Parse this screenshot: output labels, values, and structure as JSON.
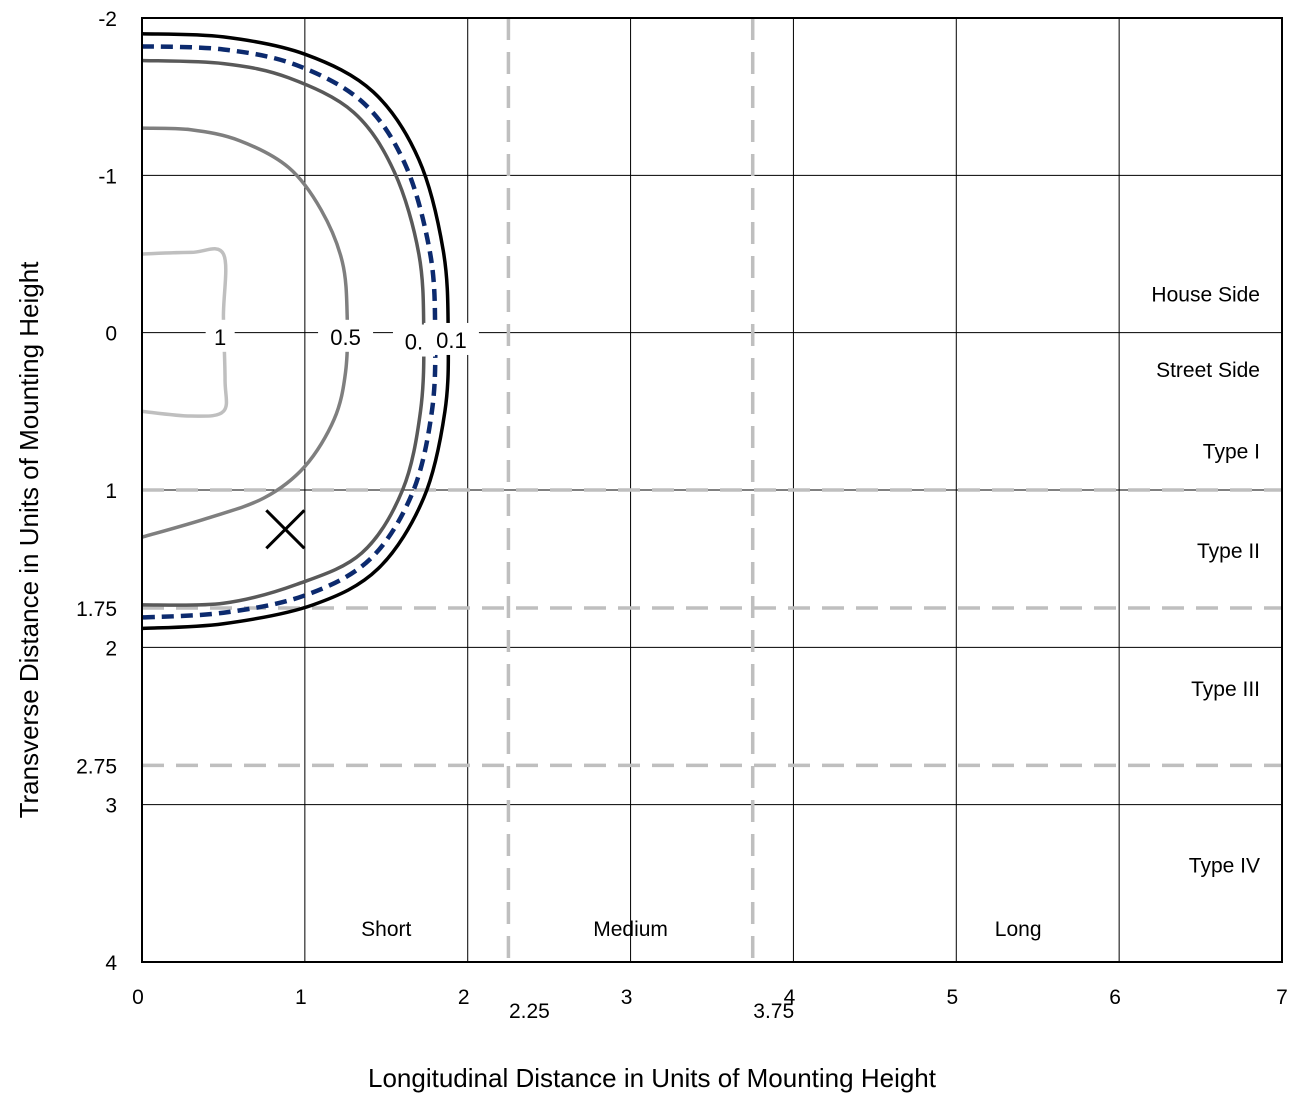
{
  "chart_data": {
    "type": "line",
    "title": "",
    "xlabel": "Longitudinal Distance in Units of Mounting Height",
    "ylabel": "Transverse Distance in Units of Mounting Height",
    "xlim": [
      0,
      7
    ],
    "ylim": [
      -2,
      4
    ],
    "y_axis_inverted": true,
    "grid": true,
    "x_ticks": [
      {
        "value": 0,
        "label": "0"
      },
      {
        "value": 1,
        "label": "1"
      },
      {
        "value": 2,
        "label": "2"
      },
      {
        "value": 2.25,
        "label": "2.25"
      },
      {
        "value": 3,
        "label": "3"
      },
      {
        "value": 3.75,
        "label": "3.75"
      },
      {
        "value": 4,
        "label": "4"
      },
      {
        "value": 5,
        "label": "5"
      },
      {
        "value": 6,
        "label": "6"
      },
      {
        "value": 7,
        "label": "7"
      }
    ],
    "y_ticks": [
      {
        "value": -2,
        "label": "-2"
      },
      {
        "value": -1,
        "label": "-1"
      },
      {
        "value": 0,
        "label": "0"
      },
      {
        "value": 1,
        "label": "1"
      },
      {
        "value": 1.75,
        "label": "1.75"
      },
      {
        "value": 2,
        "label": "2"
      },
      {
        "value": 2.75,
        "label": "2.75"
      },
      {
        "value": 3,
        "label": "3"
      },
      {
        "value": 4,
        "label": "4"
      }
    ],
    "classification_lines": {
      "vertical": [
        2.25,
        3.75
      ],
      "horizontal": [
        1,
        1.75,
        2.75
      ],
      "color": "#bfbfbf"
    },
    "region_labels": {
      "right": [
        {
          "label": "House Side",
          "y": -0.25
        },
        {
          "label": "Street Side",
          "y": 0.23
        },
        {
          "label": "Type I",
          "y": 0.75
        },
        {
          "label": "Type II",
          "y": 1.38
        },
        {
          "label": "Type III",
          "y": 2.26
        },
        {
          "label": "Type IV",
          "y": 3.38
        }
      ],
      "bottom": [
        {
          "label": "Short",
          "x": 1.5
        },
        {
          "label": "Medium",
          "x": 3.0
        },
        {
          "label": "Long",
          "x": 5.38
        }
      ]
    },
    "max_candela_marker": {
      "x": 0.88,
      "y": 1.25
    },
    "series": [
      {
        "label": "1",
        "color": "#bfbfbf",
        "style": "solid",
        "points": [
          [
            0,
            -0.5
          ],
          [
            0.3,
            -0.51
          ],
          [
            0.5,
            -0.5
          ],
          [
            0.5,
            -0.1
          ],
          [
            0.51,
            0.3
          ],
          [
            0.5,
            0.5
          ],
          [
            0.3,
            0.53
          ],
          [
            0,
            0.5
          ]
        ]
      },
      {
        "label": "0.5",
        "color": "#7f7f7f",
        "style": "solid",
        "points": [
          [
            0,
            -1.3
          ],
          [
            0.3,
            -1.29
          ],
          [
            0.6,
            -1.22
          ],
          [
            0.9,
            -1.05
          ],
          [
            1.1,
            -0.78
          ],
          [
            1.23,
            -0.45
          ],
          [
            1.26,
            -0.1
          ],
          [
            1.25,
            0.25
          ],
          [
            1.18,
            0.55
          ],
          [
            1.0,
            0.85
          ],
          [
            0.75,
            1.05
          ],
          [
            0.4,
            1.18
          ],
          [
            0,
            1.3
          ]
        ]
      },
      {
        "label": "0.",
        "color": "#595959",
        "style": "solid",
        "points": [
          [
            0,
            -1.73
          ],
          [
            0.5,
            -1.71
          ],
          [
            0.9,
            -1.62
          ],
          [
            1.3,
            -1.4
          ],
          [
            1.55,
            -1.02
          ],
          [
            1.7,
            -0.5
          ],
          [
            1.73,
            0
          ],
          [
            1.71,
            0.5
          ],
          [
            1.6,
            1.0
          ],
          [
            1.35,
            1.4
          ],
          [
            0.95,
            1.6
          ],
          [
            0.5,
            1.72
          ],
          [
            0,
            1.73
          ]
        ]
      },
      {
        "label": "",
        "color": "#0c2a6e",
        "style": "dashed",
        "points": [
          [
            0,
            -1.82
          ],
          [
            0.5,
            -1.8
          ],
          [
            0.95,
            -1.7
          ],
          [
            1.36,
            -1.46
          ],
          [
            1.62,
            -1.06
          ],
          [
            1.77,
            -0.5
          ],
          [
            1.8,
            0
          ],
          [
            1.78,
            0.5
          ],
          [
            1.66,
            1.02
          ],
          [
            1.4,
            1.44
          ],
          [
            1.0,
            1.67
          ],
          [
            0.5,
            1.78
          ],
          [
            0,
            1.81
          ]
        ]
      },
      {
        "label": "0.1",
        "color": "#000000",
        "style": "solid",
        "points": [
          [
            0,
            -1.9
          ],
          [
            0.5,
            -1.88
          ],
          [
            1.0,
            -1.77
          ],
          [
            1.42,
            -1.53
          ],
          [
            1.7,
            -1.1
          ],
          [
            1.85,
            -0.52
          ],
          [
            1.88,
            0
          ],
          [
            1.86,
            0.5
          ],
          [
            1.73,
            1.05
          ],
          [
            1.45,
            1.5
          ],
          [
            1.05,
            1.73
          ],
          [
            0.5,
            1.85
          ],
          [
            0,
            1.88
          ]
        ]
      }
    ],
    "contour_labels": [
      {
        "text": "1",
        "x": 0.48,
        "y": 0.02
      },
      {
        "text": "0.5",
        "x": 1.25,
        "y": 0.02
      },
      {
        "text": "0.",
        "x": 1.67,
        "y": 0.05
      },
      {
        "text": "0.1",
        "x": 1.9,
        "y": 0.04
      }
    ]
  }
}
